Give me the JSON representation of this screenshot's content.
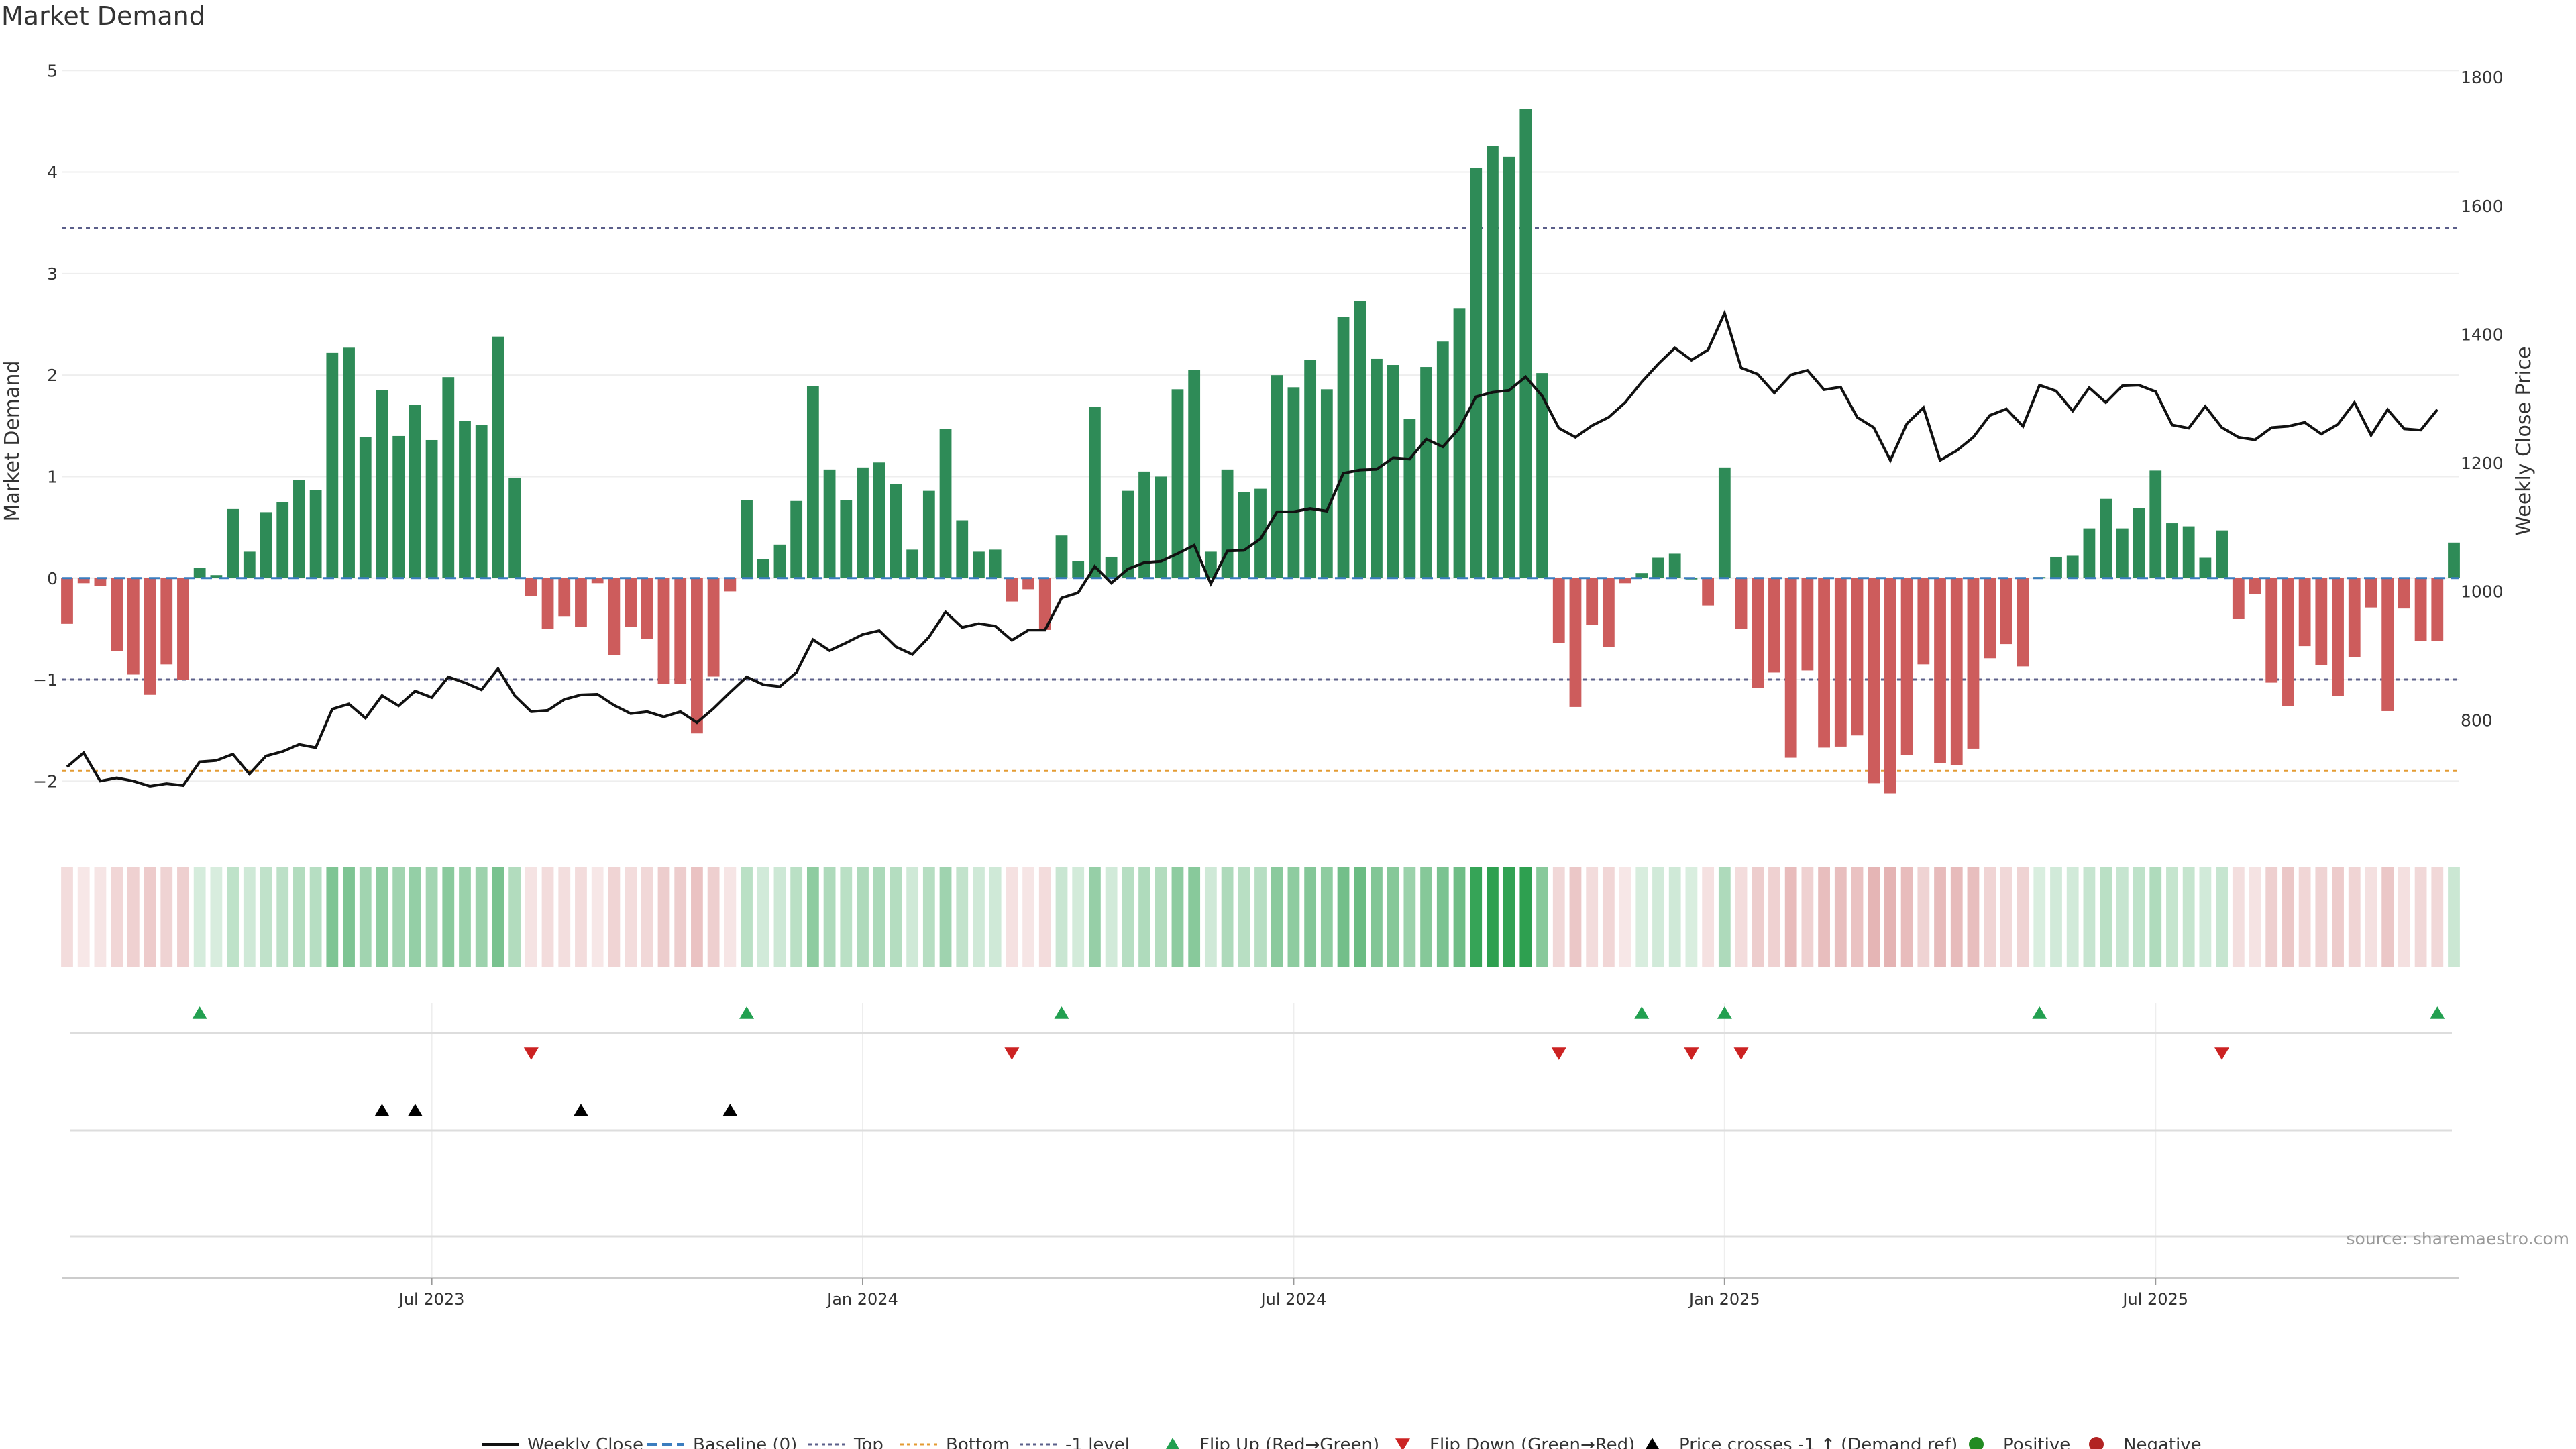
{
  "title": "Market Demand",
  "source_text": "source: sharemaestro.com",
  "colors": {
    "positive": "#2e8b57",
    "negative": "#cd5c5c",
    "price_line": "#111111",
    "top_line": "#5b5f8a",
    "bottom_line": "#e39b33",
    "flip_up": "#22a050",
    "flip_down": "#cc2222",
    "cross": "#000000",
    "legend_positive": "#228b22",
    "legend_negative": "#b22222"
  },
  "legend": {
    "weekly_close": "Weekly Close",
    "baseline": "Baseline (0)",
    "top": "Top",
    "bottom": "Bottom",
    "minus1": "-1 level",
    "flip_up": "Flip Up (Red→Green)",
    "flip_down": "Flip Down (Green→Red)",
    "price_cross": "Price crosses -1 ↑ (Demand ref)",
    "positive": "Positive",
    "negative": "Negative"
  },
  "chart_data": {
    "type": "bar",
    "x_axis": {
      "type": "weekly",
      "n_weeks": 145,
      "ticks": [
        {
          "label": "Jul 2023",
          "week": 22
        },
        {
          "label": "Jan 2024",
          "week": 48
        },
        {
          "label": "Jul 2024",
          "week": 74
        },
        {
          "label": "Jan 2025",
          "week": 100
        },
        {
          "label": "Jul 2025",
          "week": 126
        }
      ]
    },
    "left_axis": {
      "label": "Market Demand",
      "ylim": [
        -2.5,
        5.2
      ],
      "ticks": [
        -2,
        -1,
        0,
        1,
        2,
        3,
        4,
        5
      ]
    },
    "right_axis": {
      "label": "Weekly Close Price",
      "ylim": [
        626,
        1842
      ],
      "ticks": [
        800,
        1000,
        1200,
        1400,
        1600,
        1800
      ]
    },
    "top_level": 3.45,
    "bottom_level": -1.9,
    "minus1_level": -1,
    "series": [
      {
        "name": "Market Demand",
        "values": [
          -0.45,
          -0.05,
          -0.08,
          -0.72,
          -0.95,
          -1.15,
          -0.85,
          -1.0,
          0.1,
          0.03,
          0.68,
          0.26,
          0.65,
          0.75,
          0.97,
          0.87,
          2.22,
          2.27,
          1.39,
          1.85,
          1.4,
          1.71,
          1.36,
          1.98,
          1.55,
          1.51,
          2.38,
          0.99,
          -0.18,
          -0.5,
          -0.38,
          -0.48,
          -0.05,
          -0.76,
          -0.48,
          -0.6,
          -1.04,
          -1.04,
          -1.53,
          -0.97,
          -0.13,
          0.77,
          0.19,
          0.33,
          0.76,
          1.89,
          1.07,
          0.77,
          1.09,
          1.14,
          0.93,
          0.28,
          0.86,
          1.47,
          0.57,
          0.26,
          0.28,
          -0.23,
          -0.11,
          -0.51,
          0.42,
          0.17,
          1.69,
          0.21,
          0.86,
          1.05,
          1.0,
          1.86,
          2.05,
          0.26,
          1.07,
          0.85,
          0.88,
          2.0,
          1.88,
          2.15,
          1.86,
          2.57,
          2.73,
          2.16,
          2.1,
          1.57,
          2.08,
          2.33,
          2.66,
          4.04,
          4.26,
          4.15,
          4.62,
          2.02,
          -0.64,
          -1.27,
          -0.46,
          -0.68,
          -0.05,
          0.05,
          0.2,
          0.24,
          0.0,
          -0.27,
          1.09,
          -0.5,
          -1.08,
          -0.93,
          -1.77,
          -0.91,
          -1.67,
          -1.66,
          -1.55,
          -2.02,
          -2.12,
          -1.74,
          -0.85,
          -1.82,
          -1.84,
          -1.68,
          -0.79,
          -0.65,
          -0.87,
          0.01,
          0.21,
          0.22,
          0.49,
          0.78,
          0.49,
          0.69,
          1.06,
          0.54,
          0.51,
          0.2,
          0.47,
          -0.4,
          -0.16,
          -1.03,
          -1.26,
          -0.67,
          -0.86,
          -1.16,
          -0.78,
          -0.29,
          -1.31,
          -0.3,
          -0.62,
          -0.62,
          0.35
        ]
      },
      {
        "name": "Weekly Close",
        "values": [
          727,
          749,
          705,
          710,
          705,
          697,
          701,
          698,
          735,
          737,
          747,
          716,
          744,
          751,
          762,
          757,
          817,
          825,
          803,
          838,
          822,
          845,
          835,
          867,
          858,
          847,
          880,
          838,
          813,
          815,
          832,
          839,
          840,
          823,
          810,
          813,
          805,
          813,
          796,
          818,
          843,
          867,
          855,
          852,
          874,
          925,
          908,
          920,
          933,
          939,
          914,
          902,
          929,
          968,
          944,
          950,
          946,
          924,
          940,
          940,
          990,
          998,
          1039,
          1013,
          1035,
          1045,
          1047,
          1059,
          1072,
          1012,
          1063,
          1064,
          1082,
          1124,
          1124,
          1129,
          1125,
          1184,
          1189,
          1190,
          1208,
          1206,
          1237,
          1225,
          1254,
          1303,
          1310,
          1313,
          1334,
          1304,
          1254,
          1240,
          1258,
          1271,
          1294,
          1326,
          1354,
          1379,
          1360,
          1376,
          1433,
          1348,
          1338,
          1309,
          1337,
          1344,
          1314,
          1318,
          1271,
          1255,
          1204,
          1261,
          1286,
          1204,
          1219,
          1240,
          1274,
          1284,
          1257,
          1321,
          1312,
          1281,
          1317,
          1294,
          1320,
          1321,
          1311,
          1259,
          1254,
          1288,
          1255,
          1240,
          1236,
          1255,
          1257,
          1263,
          1245,
          1260,
          1294,
          1243,
          1283,
          1253,
          1251,
          1283
        ]
      }
    ],
    "heatmap_strip": {
      "description_type": "demand color strip",
      "same_as_series": "Market Demand"
    },
    "flip_up_weeks": [
      8,
      41,
      60,
      95,
      100,
      119,
      143
    ],
    "flip_down_weeks": [
      28,
      57,
      90,
      98,
      101,
      130
    ],
    "price_cross_weeks": [
      19,
      21,
      31,
      40
    ],
    "positive_weeks": [],
    "negative_weeks": []
  }
}
